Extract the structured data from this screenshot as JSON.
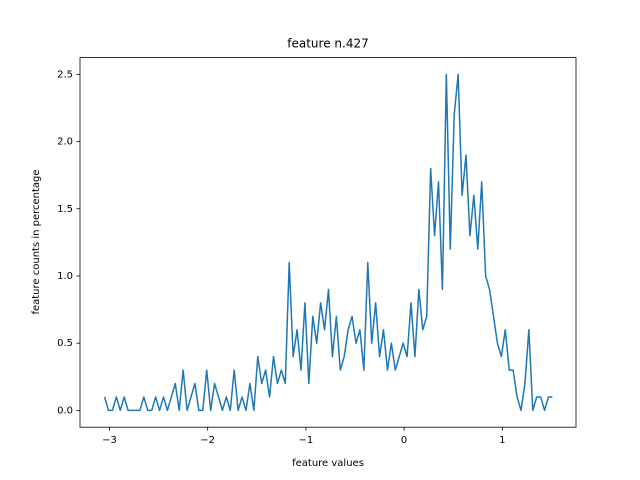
{
  "chart_data": {
    "type": "line",
    "title": "feature n.427",
    "xlabel": "feature values",
    "ylabel": "feature counts in percentage",
    "x": [
      -3.05,
      -3.01,
      -2.97,
      -2.93,
      -2.89,
      -2.85,
      -2.81,
      -2.77,
      -2.73,
      -2.69,
      -2.65,
      -2.61,
      -2.57,
      -2.53,
      -2.49,
      -2.45,
      -2.41,
      -2.37,
      -2.33,
      -2.29,
      -2.25,
      -2.21,
      -2.17,
      -2.13,
      -2.09,
      -2.05,
      -2.01,
      -1.97,
      -1.93,
      -1.89,
      -1.85,
      -1.81,
      -1.77,
      -1.73,
      -1.69,
      -1.65,
      -1.61,
      -1.57,
      -1.53,
      -1.49,
      -1.45,
      -1.41,
      -1.37,
      -1.33,
      -1.29,
      -1.25,
      -1.21,
      -1.17,
      -1.13,
      -1.09,
      -1.05,
      -1.01,
      -0.97,
      -0.93,
      -0.89,
      -0.85,
      -0.81,
      -0.77,
      -0.73,
      -0.69,
      -0.65,
      -0.61,
      -0.57,
      -0.53,
      -0.49,
      -0.45,
      -0.41,
      -0.37,
      -0.33,
      -0.29,
      -0.25,
      -0.21,
      -0.17,
      -0.13,
      -0.09,
      -0.05,
      -0.01,
      0.03,
      0.07,
      0.11,
      0.15,
      0.19,
      0.23,
      0.27,
      0.31,
      0.35,
      0.39,
      0.43,
      0.47,
      0.51,
      0.55,
      0.59,
      0.63,
      0.67,
      0.71,
      0.75,
      0.79,
      0.83,
      0.87,
      0.91,
      0.95,
      0.99,
      1.03,
      1.07,
      1.11,
      1.15,
      1.19,
      1.23,
      1.27,
      1.31,
      1.35,
      1.39,
      1.43,
      1.47,
      1.51
    ],
    "series": [
      {
        "color": "#1f77b4",
        "values": [
          0.1,
          0,
          0,
          0.1,
          0,
          0.1,
          0,
          0,
          0,
          0,
          0.1,
          0,
          0,
          0.1,
          0,
          0.1,
          0,
          0.1,
          0.2,
          0,
          0.3,
          0,
          0.1,
          0.2,
          0,
          0,
          0.3,
          0,
          0.2,
          0.1,
          0,
          0.1,
          0,
          0.3,
          0,
          0.1,
          0,
          0.2,
          0,
          0.4,
          0.2,
          0.3,
          0.1,
          0.4,
          0.2,
          0.3,
          0.2,
          1.1,
          0.4,
          0.6,
          0.3,
          0.8,
          0.2,
          0.7,
          0.5,
          0.8,
          0.6,
          0.9,
          0.4,
          0.7,
          0.3,
          0.4,
          0.6,
          0.7,
          0.5,
          0.6,
          0.3,
          1.1,
          0.5,
          0.8,
          0.4,
          0.6,
          0.3,
          0.5,
          0.3,
          0.4,
          0.5,
          0.4,
          0.8,
          0.4,
          0.9,
          0.6,
          0.7,
          1.8,
          1.3,
          1.7,
          0.9,
          2.5,
          1.2,
          2.2,
          2.5,
          1.6,
          1.9,
          1.3,
          1.6,
          1.2,
          1.7,
          1.0,
          0.9,
          0.7,
          0.5,
          0.4,
          0.6,
          0.3,
          0.3,
          0.1,
          0,
          0.2,
          0.6,
          0,
          0.1,
          0.1,
          0,
          0.1,
          0.1
        ]
      }
    ],
    "xlim": [
      -3.3,
      1.75
    ],
    "ylim": [
      -0.125,
      2.625
    ],
    "xticks": [
      {
        "value": -3,
        "label": "−3"
      },
      {
        "value": -2,
        "label": "−2"
      },
      {
        "value": -1,
        "label": "−1"
      },
      0,
      1
    ],
    "yticks": [
      {
        "value": 0,
        "label": "0.0"
      },
      {
        "value": 0.5,
        "label": "0.5"
      },
      {
        "value": 1,
        "label": "1.0"
      },
      {
        "value": 1.5,
        "label": "1.5"
      },
      {
        "value": 2,
        "label": "2.0"
      },
      {
        "value": 2.5,
        "label": "2.5"
      }
    ]
  }
}
